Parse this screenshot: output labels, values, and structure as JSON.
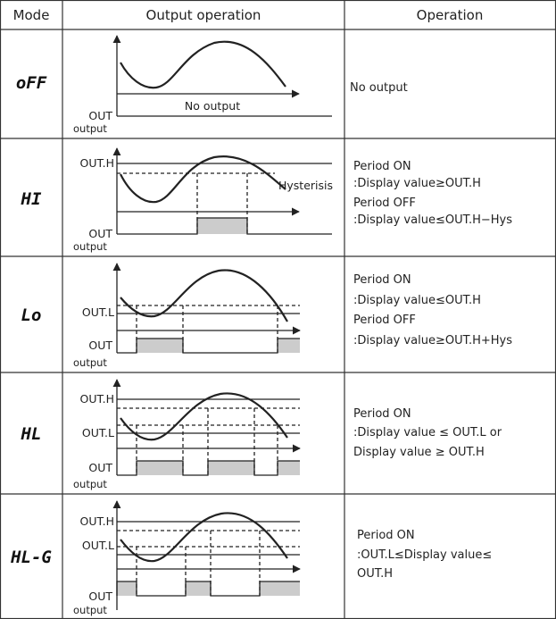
{
  "header": {
    "mode": "Mode",
    "output_operation": "Output operation",
    "operation": "Operation"
  },
  "rows": [
    {
      "mode": "oFF",
      "labels": {
        "out": "OUT",
        "output": "output",
        "no_output": "No output"
      },
      "operation": [
        "No output"
      ]
    },
    {
      "mode": "HI",
      "labels": {
        "outh": "OUT.H",
        "hysteresis": "Hysterisis",
        "out": "OUT",
        "output": "output"
      },
      "operation": [
        "Period ON",
        ":Display value≥OUT.H",
        "Period OFF",
        ":Display value≤OUT.H−Hys"
      ]
    },
    {
      "mode": "Lo",
      "labels": {
        "outl": "OUT.L",
        "out": "OUT",
        "output": "output"
      },
      "operation": [
        "Period ON",
        " :Display value≤OUT.H",
        "Period OFF",
        " :Display value≥OUT.H+Hys"
      ]
    },
    {
      "mode": "HL",
      "labels": {
        "outh": "OUT.H",
        "outl": "OUT.L",
        "out": "OUT",
        "output": "output"
      },
      "operation": [
        "Period ON",
        " :Display value ≤ OUT.L or",
        " Display value ≥ OUT.H"
      ]
    },
    {
      "mode": "HL-G",
      "labels": {
        "outh": "OUT.H",
        "outl": "OUT.L",
        "out": "OUT",
        "output": "output"
      },
      "operation": [
        "Period ON",
        " :OUT.L≤Display value≤",
        " OUT.H"
      ]
    }
  ],
  "colors": {
    "grid": "#333333",
    "fill": "#cccccc"
  }
}
